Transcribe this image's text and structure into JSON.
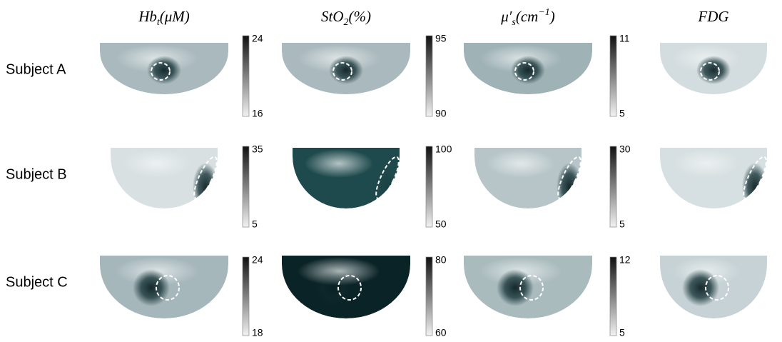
{
  "headers": [
    {
      "parts": [
        {
          "text": "Hb",
          "style": "normal"
        },
        {
          "text": "t",
          "style": "sub"
        },
        {
          "text": "(μM)",
          "style": "normal"
        }
      ]
    },
    {
      "parts": [
        {
          "text": "StO",
          "style": "normal"
        },
        {
          "text": "2",
          "style": "sub"
        },
        {
          "text": "(%)",
          "style": "normal"
        }
      ]
    },
    {
      "parts": [
        {
          "text": "μ′",
          "style": "normal"
        },
        {
          "text": "s",
          "style": "sub"
        },
        {
          "text": "(cm",
          "style": "normal"
        },
        {
          "text": "−1",
          "style": "sup"
        },
        {
          "text": ")",
          "style": "normal"
        }
      ]
    },
    {
      "parts": [
        {
          "text": "FDG",
          "style": "normal"
        }
      ]
    }
  ],
  "rows": [
    {
      "label": "Subject A",
      "colorbars": [
        {
          "max": 24,
          "min": 16
        },
        {
          "max": 95,
          "min": 90
        },
        {
          "max": 11,
          "min": 5
        }
      ]
    },
    {
      "label": "Subject B",
      "colorbars": [
        {
          "max": 35,
          "min": 5
        },
        {
          "max": 100,
          "min": 50
        },
        {
          "max": 30,
          "min": 5
        }
      ]
    },
    {
      "label": "Subject C",
      "colorbars": [
        {
          "max": 24,
          "min": 18
        },
        {
          "max": 80,
          "min": 60
        },
        {
          "max": 12,
          "min": 5
        }
      ]
    }
  ]
}
